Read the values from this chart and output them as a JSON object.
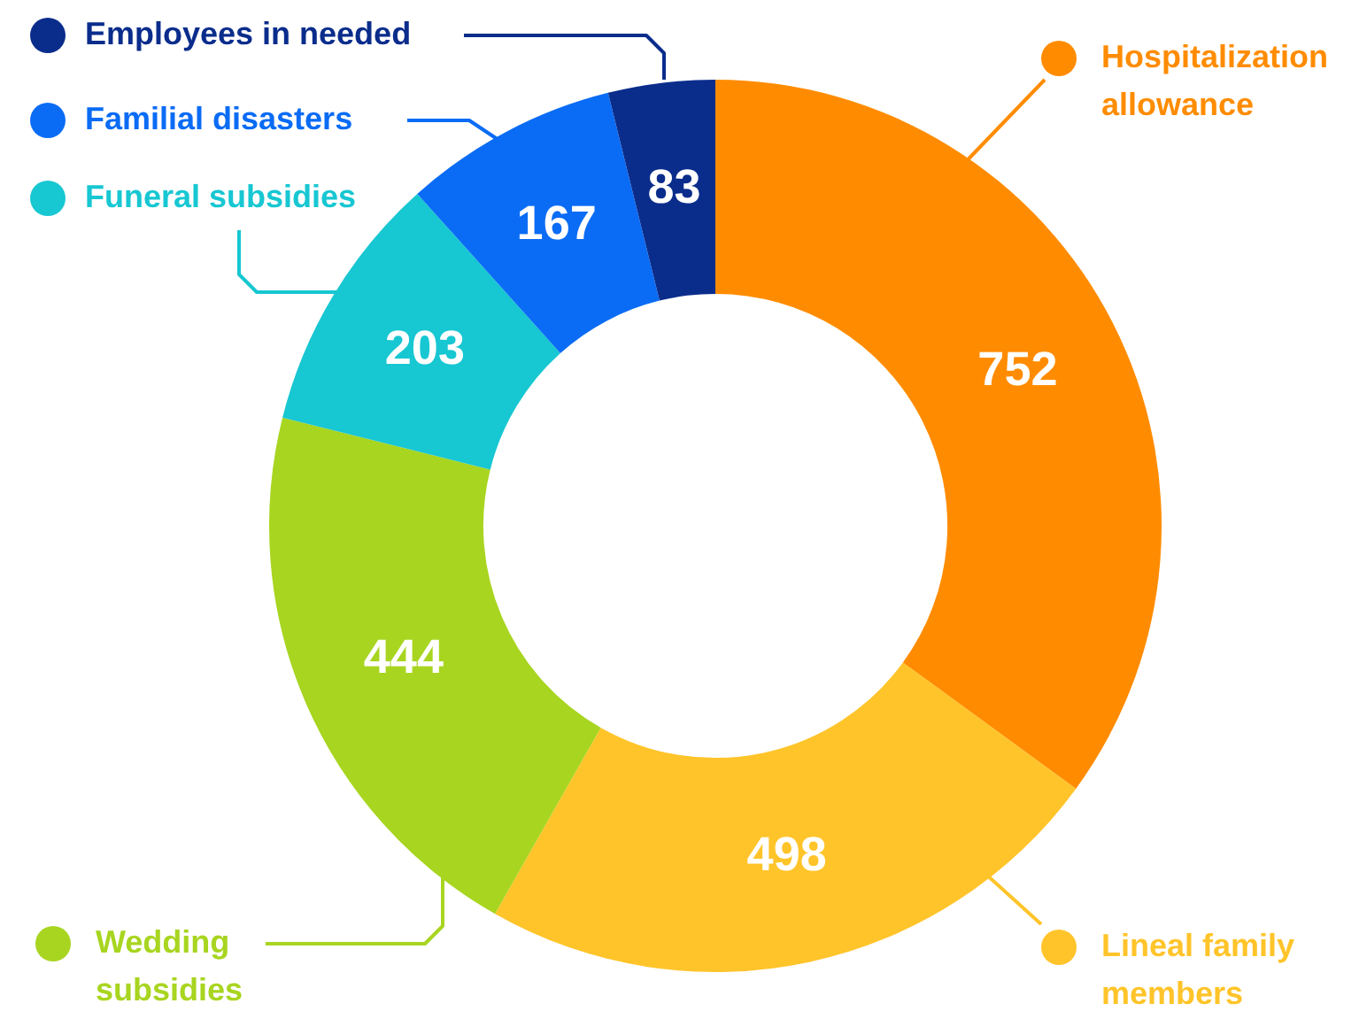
{
  "chart_data": {
    "type": "donut",
    "categories": [
      "Hospitalization allowance",
      "Lineal family members",
      "Wedding subsidies",
      "Funeral subsidies",
      "Familial disasters",
      "Employees in needed"
    ],
    "values": [
      752,
      498,
      444,
      203,
      167,
      83
    ],
    "colors": [
      "#ff8c00",
      "#ffc42a",
      "#a8d520",
      "#17c7d2",
      "#0a6cf5",
      "#0a2d8c"
    ],
    "data_labels": true,
    "legend": "left"
  }
}
